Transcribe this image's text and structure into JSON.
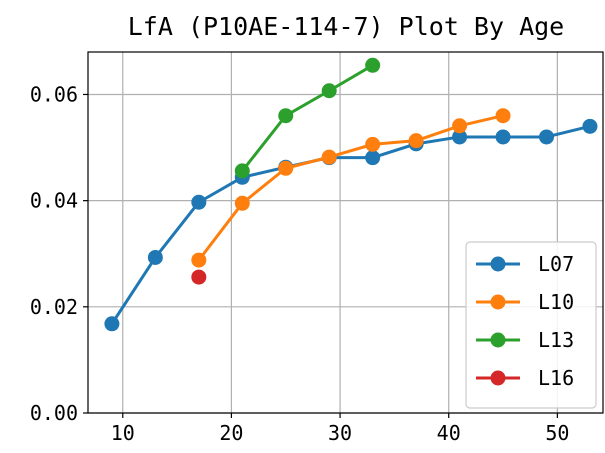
{
  "chart_data": {
    "type": "line",
    "title": "LfA (P10AE-114-7) Plot By Age",
    "xlabel": "",
    "ylabel": "",
    "xlim": [
      6.8,
      54.2
    ],
    "ylim": [
      0,
      0.068
    ],
    "xticks": [
      10,
      20,
      30,
      40,
      50
    ],
    "xtick_labels": [
      "10",
      "20",
      "30",
      "40",
      "50"
    ],
    "yticks": [
      0,
      0.02,
      0.04,
      0.06
    ],
    "ytick_labels": [
      "0.00",
      "0.02",
      "0.04",
      "0.06"
    ],
    "grid": true,
    "legend_position": "lower-right",
    "series": [
      {
        "name": "L07",
        "color": "#1f77b4",
        "x": [
          9,
          13,
          17,
          21,
          25,
          29,
          33,
          37,
          41,
          45,
          49,
          53
        ],
        "y": [
          0.0168,
          0.0293,
          0.0397,
          0.0444,
          0.0463,
          0.0481,
          0.0481,
          0.0507,
          0.052,
          0.052,
          0.052,
          0.054
        ]
      },
      {
        "name": "L10",
        "color": "#ff7f0e",
        "x": [
          17,
          21,
          25,
          29,
          33,
          37,
          41,
          45
        ],
        "y": [
          0.0288,
          0.0395,
          0.0461,
          0.0482,
          0.0506,
          0.0513,
          0.0541,
          0.056
        ]
      },
      {
        "name": "L13",
        "color": "#2ca02c",
        "x": [
          21,
          25,
          29,
          33
        ],
        "y": [
          0.0456,
          0.056,
          0.0607,
          0.0655
        ]
      },
      {
        "name": "L16",
        "color": "#d62728",
        "x": [
          17
        ],
        "y": [
          0.0256
        ]
      }
    ]
  }
}
